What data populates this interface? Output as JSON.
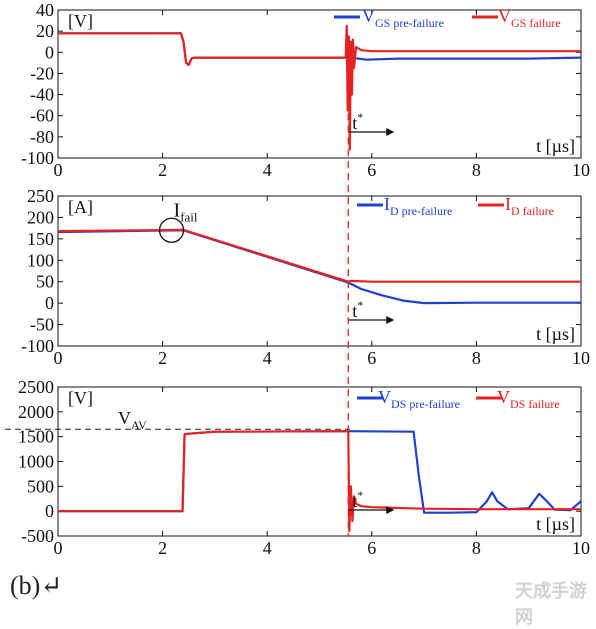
{
  "chart_data": [
    {
      "type": "line",
      "panel": "top",
      "unit_label": "[V]",
      "xlabel": "t [µs]",
      "xlim": [
        0,
        10
      ],
      "ylim": [
        -100,
        40
      ],
      "xticks": [
        "0",
        "2",
        "4",
        "6",
        "8",
        "10"
      ],
      "yticks": [
        "40",
        "20",
        "0",
        "-20",
        "-40",
        "-60",
        "-80",
        "-100"
      ],
      "marker_label": "t*",
      "series": [
        {
          "name": "VGS pre-failure",
          "legend_main": "V",
          "legend_sub": "GS pre-failure",
          "color": "#1f3fd1",
          "x": [
            0,
            2.35,
            2.4,
            2.45,
            2.5,
            2.55,
            2.6,
            5.55,
            5.6,
            5.9,
            6.5,
            8,
            9,
            10
          ],
          "y": [
            18,
            18,
            10,
            -10,
            -12,
            -6,
            -5,
            -5,
            -5,
            -7,
            -6,
            -6,
            -6,
            -5
          ]
        },
        {
          "name": "VGS failure",
          "legend_main": "V",
          "legend_sub": "GS failure",
          "color": "#e52222",
          "x": [
            0,
            2.35,
            2.4,
            2.45,
            2.5,
            2.55,
            2.6,
            5.5,
            5.52,
            5.54,
            5.56,
            5.58,
            5.6,
            5.62,
            5.64,
            5.66,
            5.7,
            5.8,
            6,
            7,
            8,
            10
          ],
          "y": [
            18,
            18,
            10,
            -10,
            -12,
            -6,
            -5,
            -5,
            25,
            -55,
            15,
            -92,
            10,
            -40,
            12,
            -15,
            5,
            2,
            1,
            1,
            1,
            1
          ]
        }
      ]
    },
    {
      "type": "line",
      "panel": "middle",
      "unit_label": "[A]",
      "xlabel": "t [µs]",
      "xlim": [
        0,
        10
      ],
      "ylim": [
        -100,
        250
      ],
      "xticks": [
        "0",
        "2",
        "4",
        "6",
        "8",
        "10"
      ],
      "yticks": [
        "250",
        "200",
        "150",
        "100",
        "50",
        "0",
        "-50",
        "-100"
      ],
      "marker_label": "t*",
      "annotation": "Ifail",
      "annotation_main": "I",
      "annotation_sub": "fail",
      "series": [
        {
          "name": "ID pre-failure",
          "legend_main": "I",
          "legend_sub": "D pre-failure",
          "color": "#1f3fd1",
          "x": [
            0,
            2.4,
            5.55,
            5.8,
            6.2,
            6.6,
            7,
            8,
            9,
            10
          ],
          "y": [
            166,
            170,
            48,
            33,
            18,
            6,
            0,
            1,
            1,
            1
          ]
        },
        {
          "name": "ID failure",
          "legend_main": "I",
          "legend_sub": "D failure",
          "color": "#e52222",
          "x": [
            0,
            2.4,
            5.55,
            5.6,
            6,
            7,
            8,
            10
          ],
          "y": [
            168,
            171,
            50,
            52,
            50,
            50,
            50,
            50
          ]
        }
      ]
    },
    {
      "type": "line",
      "panel": "bottom",
      "unit_label": "[V]",
      "xlabel": "t [µs]",
      "xlim": [
        0,
        10
      ],
      "ylim": [
        -500,
        2500
      ],
      "xticks": [
        "0",
        "2",
        "4",
        "6",
        "8",
        "10"
      ],
      "yticks": [
        "2500",
        "2000",
        "1500",
        "1000",
        "500",
        "0",
        "-500"
      ],
      "marker_label": "t*",
      "reference_line": {
        "label": "VAV",
        "label_main": "V",
        "label_sub": "AV",
        "y": 1650
      },
      "series": [
        {
          "name": "VDS pre-failure",
          "legend_main": "V",
          "legend_sub": "DS pre-failure",
          "color": "#1f3fd1",
          "x": [
            0,
            2.38,
            2.42,
            2.5,
            3,
            5.55,
            6.8,
            6.9,
            7,
            7.5,
            8,
            8.2,
            8.3,
            8.4,
            8.6,
            9,
            9.2,
            9.3,
            9.5,
            9.8,
            10
          ],
          "y": [
            0,
            0,
            1550,
            1560,
            1600,
            1610,
            1600,
            700,
            -30,
            -30,
            -20,
            200,
            380,
            200,
            40,
            60,
            350,
            250,
            30,
            20,
            200
          ]
        },
        {
          "name": "VDS failure",
          "legend_main": "V",
          "legend_sub": "DS failure",
          "color": "#e52222",
          "x": [
            0,
            2.38,
            2.42,
            2.5,
            3,
            5.55,
            5.57,
            5.6,
            5.63,
            5.66,
            5.7,
            5.8,
            6,
            7,
            8,
            10
          ],
          "y": [
            0,
            0,
            1550,
            1560,
            1600,
            1610,
            -400,
            500,
            -200,
            300,
            150,
            100,
            80,
            50,
            40,
            40
          ]
        }
      ]
    }
  ],
  "caption": "(b)↵",
  "watermark": "天成手游网"
}
